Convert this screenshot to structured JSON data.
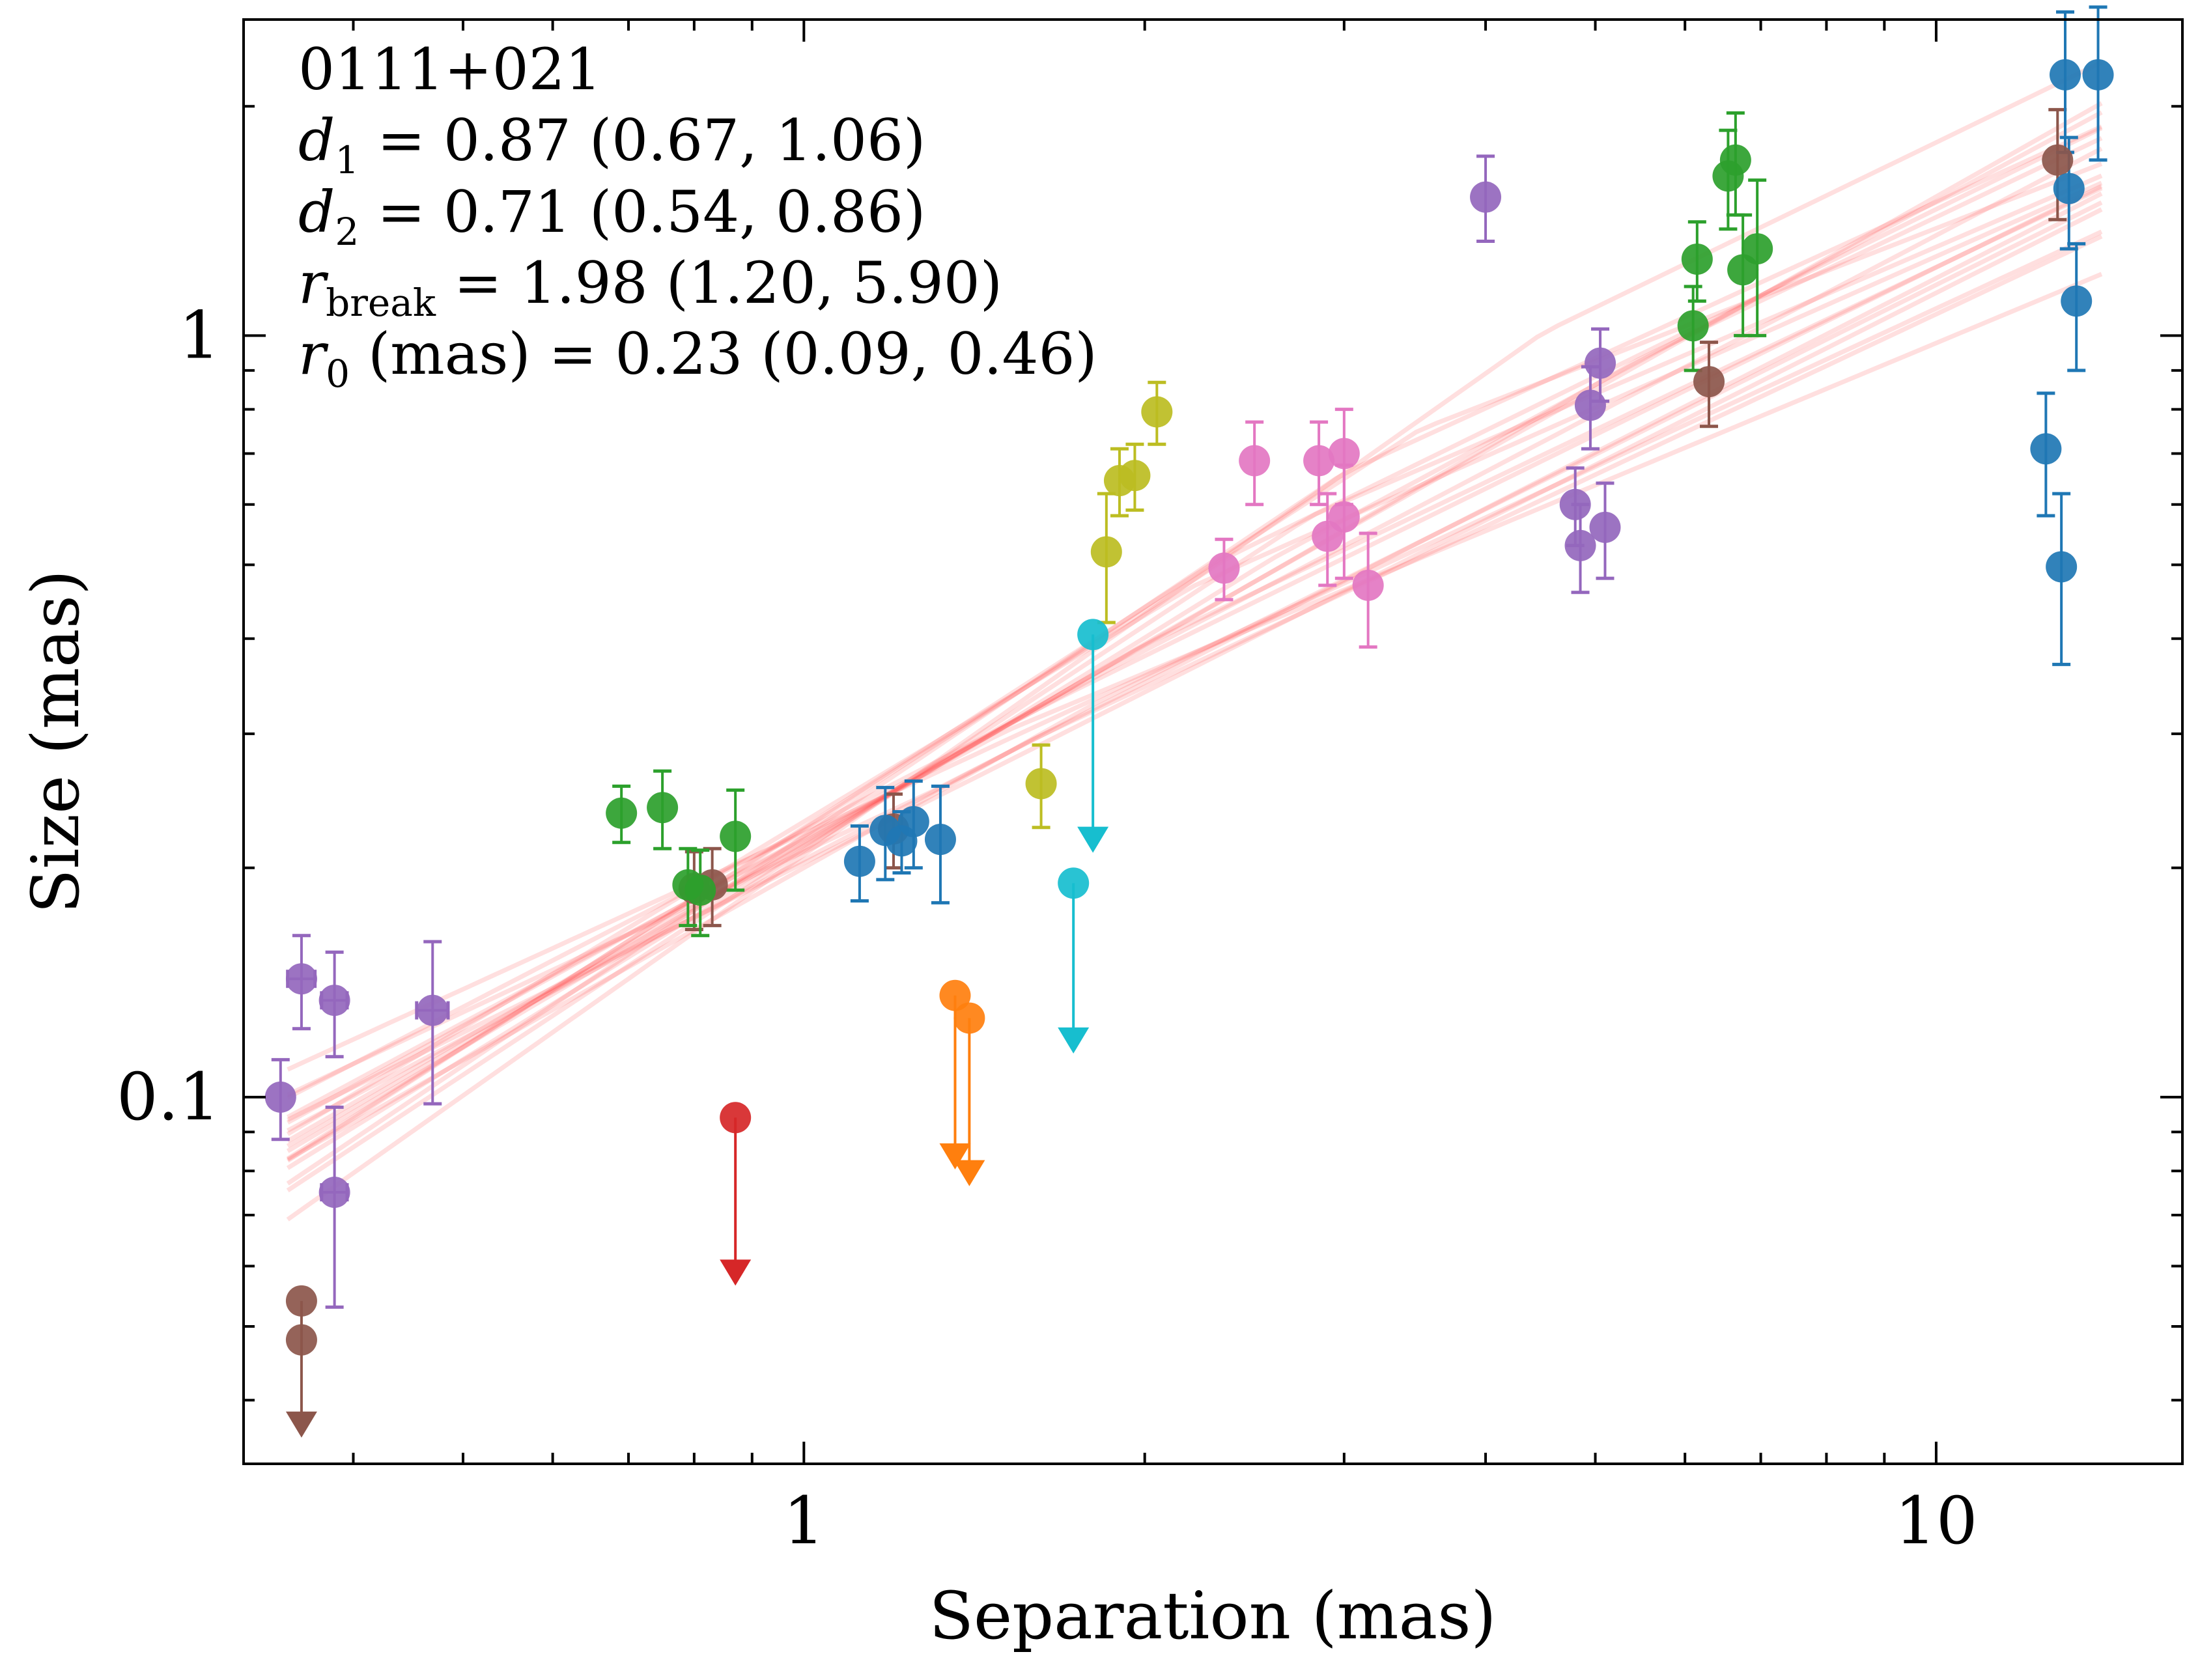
{
  "chart_data": {
    "type": "scatter",
    "title": "",
    "xlabel": "Separation (mas)",
    "ylabel": "Size (mas)",
    "xscale": "log",
    "yscale": "log",
    "xlim": [
      0.32,
      16.5
    ],
    "ylim": [
      0.033,
      2.6
    ],
    "x_ticks": [
      {
        "value": 1,
        "label": "1"
      },
      {
        "value": 10,
        "label": "10"
      }
    ],
    "y_ticks": [
      {
        "value": 0.1,
        "label": "0.1"
      },
      {
        "value": 1,
        "label": "1"
      }
    ],
    "annotations": {
      "source": "0111+021",
      "d1": {
        "symbol": "d",
        "sub": "1",
        "text": " = 0.87 (0.67, 1.06)"
      },
      "d2": {
        "symbol": "d",
        "sub": "2",
        "text": " = 0.71 (0.54, 0.86)"
      },
      "rbreak": {
        "symbol": "r",
        "sub": "break",
        "text": " = 1.98 (1.20, 5.90)"
      },
      "r0": {
        "symbol": "r",
        "sub": "0",
        "text": " (mas) = 0.23 (0.09, 0.46)"
      }
    },
    "model": {
      "description": "broken power-law posterior samples",
      "color": "#ff3b3b",
      "x_range": [
        0.35,
        14
      ],
      "samples": [
        {
          "a": 0.215,
          "d1": 0.87,
          "d2": 0.71,
          "rb": 1.98
        },
        {
          "a": 0.205,
          "d1": 0.78,
          "d2": 0.7,
          "rb": 1.6
        },
        {
          "a": 0.225,
          "d1": 0.95,
          "d2": 0.73,
          "rb": 2.4
        },
        {
          "a": 0.21,
          "d1": 0.7,
          "d2": 0.76,
          "rb": 1.3
        },
        {
          "a": 0.22,
          "d1": 1.0,
          "d2": 0.68,
          "rb": 3.0
        },
        {
          "a": 0.2,
          "d1": 0.84,
          "d2": 0.74,
          "rb": 1.8
        },
        {
          "a": 0.23,
          "d1": 0.9,
          "d2": 0.66,
          "rb": 2.2
        },
        {
          "a": 0.212,
          "d1": 0.92,
          "d2": 0.8,
          "rb": 2.6
        },
        {
          "a": 0.218,
          "d1": 0.8,
          "d2": 0.62,
          "rb": 1.5
        },
        {
          "a": 0.208,
          "d1": 1.05,
          "d2": 0.72,
          "rb": 4.5
        },
        {
          "a": 0.222,
          "d1": 0.68,
          "d2": 0.69,
          "rb": 1.2
        },
        {
          "a": 0.214,
          "d1": 0.88,
          "d2": 0.84,
          "rb": 2.0
        },
        {
          "a": 0.226,
          "d1": 0.96,
          "d2": 0.58,
          "rb": 3.5
        },
        {
          "a": 0.203,
          "d1": 0.74,
          "d2": 0.75,
          "rb": 1.4
        },
        {
          "a": 0.216,
          "d1": 0.86,
          "d2": 0.71,
          "rb": 5.5
        },
        {
          "a": 0.219,
          "d1": 0.82,
          "d2": 0.78,
          "rb": 1.9
        },
        {
          "a": 0.211,
          "d1": 0.98,
          "d2": 0.64,
          "rb": 2.8
        },
        {
          "a": 0.224,
          "d1": 0.77,
          "d2": 0.73,
          "rb": 1.7
        }
      ]
    },
    "series": [
      {
        "name": "purple",
        "color": "#9467bd",
        "points": [
          {
            "x": 0.345,
            "y": 0.1,
            "ylo": 0.088,
            "yhi": 0.112
          },
          {
            "x": 0.36,
            "y": 0.143,
            "ylo": 0.123,
            "yhi": 0.163,
            "xlo": 0.35,
            "xhi": 0.37
          },
          {
            "x": 0.385,
            "y": 0.134,
            "ylo": 0.113,
            "yhi": 0.155,
            "xlo": 0.375,
            "xhi": 0.395
          },
          {
            "x": 0.385,
            "y": 0.075,
            "ylo": 0.053,
            "yhi": 0.097,
            "xlo": 0.375,
            "xhi": 0.395
          },
          {
            "x": 0.47,
            "y": 0.13,
            "ylo": 0.098,
            "yhi": 0.16,
            "xlo": 0.455,
            "xhi": 0.485
          },
          {
            "x": 4.0,
            "y": 1.52,
            "ylo": 1.33,
            "yhi": 1.72
          },
          {
            "x": 4.8,
            "y": 0.6,
            "ylo": 0.53,
            "yhi": 0.67
          },
          {
            "x": 4.85,
            "y": 0.53,
            "ylo": 0.46,
            "yhi": 0.6
          },
          {
            "x": 4.95,
            "y": 0.81,
            "ylo": 0.71,
            "yhi": 0.91
          },
          {
            "x": 5.05,
            "y": 0.92,
            "ylo": 0.82,
            "yhi": 1.02
          },
          {
            "x": 5.1,
            "y": 0.56,
            "ylo": 0.48,
            "yhi": 0.64
          }
        ]
      },
      {
        "name": "brown",
        "color": "#8c564b",
        "points": [
          {
            "x": 0.36,
            "y": 0.054,
            "limit": 0.036
          },
          {
            "x": 0.36,
            "y": 0.048
          },
          {
            "x": 0.8,
            "y": 0.188,
            "ylo": 0.166,
            "yhi": 0.21
          },
          {
            "x": 0.83,
            "y": 0.19,
            "ylo": 0.168,
            "yhi": 0.212
          },
          {
            "x": 1.2,
            "y": 0.225,
            "ylo": 0.2,
            "yhi": 0.25
          },
          {
            "x": 6.3,
            "y": 0.87,
            "ylo": 0.76,
            "yhi": 0.98
          },
          {
            "x": 12.8,
            "y": 1.7,
            "ylo": 1.42,
            "yhi": 1.98
          }
        ]
      },
      {
        "name": "green",
        "color": "#2ca02c",
        "points": [
          {
            "x": 0.69,
            "y": 0.236,
            "ylo": 0.216,
            "yhi": 0.256
          },
          {
            "x": 0.75,
            "y": 0.24,
            "ylo": 0.212,
            "yhi": 0.268
          },
          {
            "x": 0.79,
            "y": 0.19,
            "ylo": 0.168,
            "yhi": 0.212
          },
          {
            "x": 0.81,
            "y": 0.187,
            "ylo": 0.163,
            "yhi": 0.211
          },
          {
            "x": 0.87,
            "y": 0.22,
            "ylo": 0.187,
            "yhi": 0.253
          },
          {
            "x": 6.1,
            "y": 1.03,
            "ylo": 0.9,
            "yhi": 1.16
          },
          {
            "x": 6.15,
            "y": 1.26,
            "ylo": 1.11,
            "yhi": 1.41
          },
          {
            "x": 6.55,
            "y": 1.62,
            "ylo": 1.38,
            "yhi": 1.86
          },
          {
            "x": 6.65,
            "y": 1.7,
            "ylo": 1.44,
            "yhi": 1.96
          },
          {
            "x": 6.75,
            "y": 1.22,
            "ylo": 1.0,
            "yhi": 1.44
          },
          {
            "x": 6.95,
            "y": 1.3,
            "ylo": 1.0,
            "yhi": 1.6
          }
        ]
      },
      {
        "name": "red",
        "color": "#d62728",
        "points": [
          {
            "x": 0.87,
            "y": 0.094,
            "limit": 0.057
          }
        ]
      },
      {
        "name": "blue",
        "color": "#1f77b4",
        "points": [
          {
            "x": 1.12,
            "y": 0.204,
            "ylo": 0.181,
            "yhi": 0.227
          },
          {
            "x": 1.18,
            "y": 0.224,
            "ylo": 0.193,
            "yhi": 0.255
          },
          {
            "x": 1.22,
            "y": 0.217,
            "ylo": 0.197,
            "yhi": 0.237
          },
          {
            "x": 1.25,
            "y": 0.23,
            "ylo": 0.2,
            "yhi": 0.26
          },
          {
            "x": 1.32,
            "y": 0.218,
            "ylo": 0.18,
            "yhi": 0.256
          },
          {
            "x": 12.5,
            "y": 0.71,
            "ylo": 0.58,
            "yhi": 0.84
          },
          {
            "x": 12.9,
            "y": 0.497,
            "ylo": 0.37,
            "yhi": 0.62
          },
          {
            "x": 13.0,
            "y": 2.2,
            "ylo": 1.74,
            "yhi": 2.66
          },
          {
            "x": 13.1,
            "y": 1.56,
            "ylo": 1.3,
            "yhi": 1.82
          },
          {
            "x": 13.3,
            "y": 1.11,
            "ylo": 0.9,
            "yhi": 1.32
          },
          {
            "x": 13.9,
            "y": 2.2,
            "ylo": 1.7,
            "yhi": 2.7
          }
        ]
      },
      {
        "name": "orange",
        "color": "#ff7f0e",
        "points": [
          {
            "x": 1.36,
            "y": 0.136,
            "limit": 0.081
          },
          {
            "x": 1.4,
            "y": 0.127,
            "limit": 0.077
          }
        ]
      },
      {
        "name": "olive",
        "color": "#bcbd22",
        "points": [
          {
            "x": 1.62,
            "y": 0.258,
            "ylo": 0.226,
            "yhi": 0.29
          },
          {
            "x": 1.85,
            "y": 0.52,
            "ylo": 0.42,
            "yhi": 0.62
          },
          {
            "x": 1.9,
            "y": 0.645,
            "ylo": 0.58,
            "yhi": 0.71
          },
          {
            "x": 1.96,
            "y": 0.655,
            "ylo": 0.59,
            "yhi": 0.72
          },
          {
            "x": 2.05,
            "y": 0.794,
            "ylo": 0.72,
            "yhi": 0.868
          }
        ]
      },
      {
        "name": "cyan",
        "color": "#17becf",
        "points": [
          {
            "x": 1.8,
            "y": 0.405,
            "limit": 0.211
          },
          {
            "x": 1.73,
            "y": 0.191,
            "limit": 0.115
          }
        ]
      },
      {
        "name": "pink",
        "color": "#e377c2",
        "points": [
          {
            "x": 2.35,
            "y": 0.495,
            "ylo": 0.45,
            "yhi": 0.54
          },
          {
            "x": 2.5,
            "y": 0.685,
            "ylo": 0.6,
            "yhi": 0.77
          },
          {
            "x": 2.85,
            "y": 0.685,
            "ylo": 0.6,
            "yhi": 0.77
          },
          {
            "x": 2.9,
            "y": 0.545,
            "ylo": 0.47,
            "yhi": 0.62
          },
          {
            "x": 3.0,
            "y": 0.7,
            "ylo": 0.6,
            "yhi": 0.8
          },
          {
            "x": 3.0,
            "y": 0.578,
            "ylo": 0.48,
            "yhi": 0.676
          },
          {
            "x": 3.15,
            "y": 0.47,
            "ylo": 0.39,
            "yhi": 0.55
          }
        ]
      }
    ]
  }
}
